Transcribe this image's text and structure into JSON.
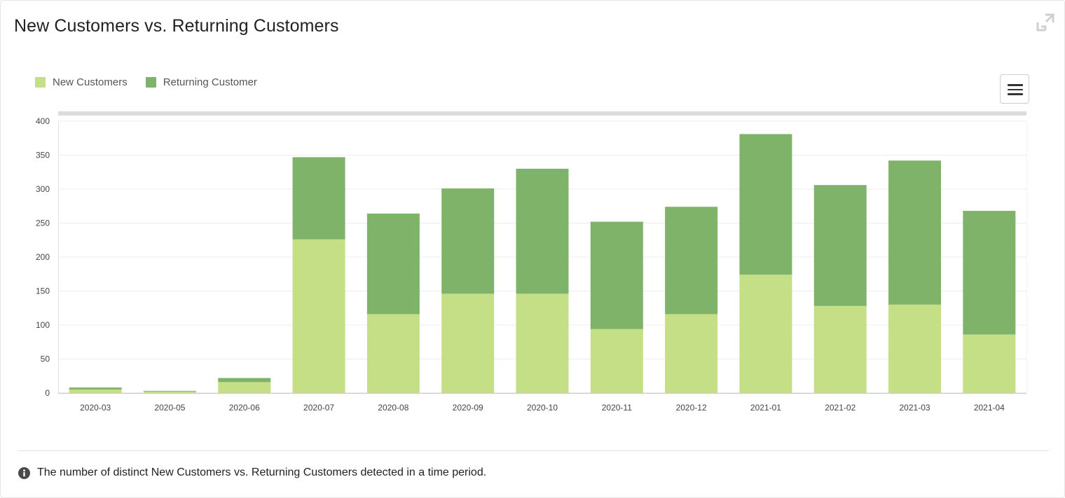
{
  "header": {
    "title": "New Customers vs. Returning Customers"
  },
  "legend": {
    "items": [
      {
        "label": "New Customers",
        "color": "#c5df86"
      },
      {
        "label": "Returning Customer",
        "color": "#7fb369"
      }
    ]
  },
  "icons": {
    "expand": "expand-icon",
    "menu": "hamburger-menu-icon",
    "info": "info-circle-icon"
  },
  "footer": {
    "description": "The number of distinct New Customers vs. Returning Customers detected in a time period."
  },
  "chart_data": {
    "type": "bar",
    "stacked": true,
    "categories": [
      "2020-03",
      "2020-05",
      "2020-06",
      "2020-07",
      "2020-08",
      "2020-09",
      "2020-10",
      "2020-11",
      "2020-12",
      "2021-01",
      "2021-02",
      "2021-03",
      "2021-04"
    ],
    "series": [
      {
        "name": "New Customers",
        "color": "#c5df86",
        "values": [
          5,
          2,
          16,
          226,
          116,
          146,
          146,
          94,
          116,
          174,
          128,
          130,
          86
        ]
      },
      {
        "name": "Returning Customer",
        "color": "#7fb369",
        "values": [
          3,
          1,
          6,
          121,
          148,
          155,
          184,
          158,
          158,
          207,
          178,
          212,
          182
        ]
      }
    ],
    "ylim": [
      0,
      400
    ],
    "yticks": [
      0,
      50,
      100,
      150,
      200,
      250,
      300,
      350,
      400
    ],
    "grid": true,
    "legend_position": "top-left",
    "title": "",
    "xlabel": "",
    "ylabel": ""
  }
}
